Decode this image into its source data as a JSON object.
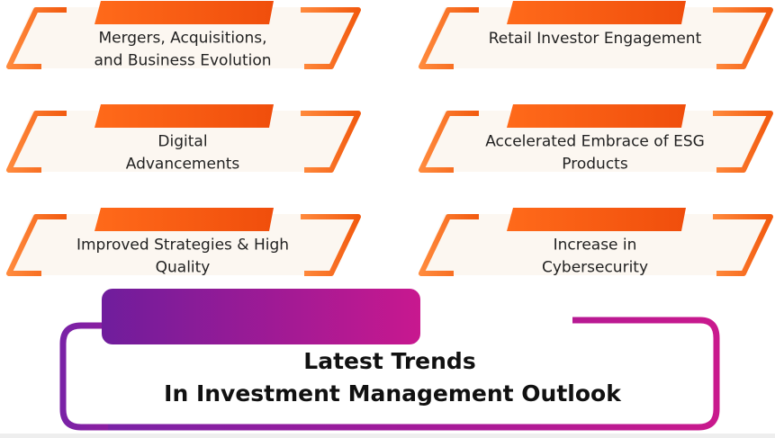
{
  "cards": [
    {
      "lines": [
        "Mergers, Acquisitions,",
        "and Business Evolution"
      ]
    },
    {
      "lines": [
        "Retail Investor Engagement"
      ]
    },
    {
      "lines": [
        "Digital",
        "Advancements"
      ]
    },
    {
      "lines": [
        "Accelerated Embrace of ESG",
        "Products"
      ]
    },
    {
      "lines": [
        "Improved Strategies & High",
        "Quality"
      ]
    },
    {
      "lines": [
        "Increase in",
        "Cybersecurity"
      ]
    }
  ],
  "title": {
    "lines": [
      "Latest Trends",
      "In Investment Management Outlook"
    ]
  }
}
